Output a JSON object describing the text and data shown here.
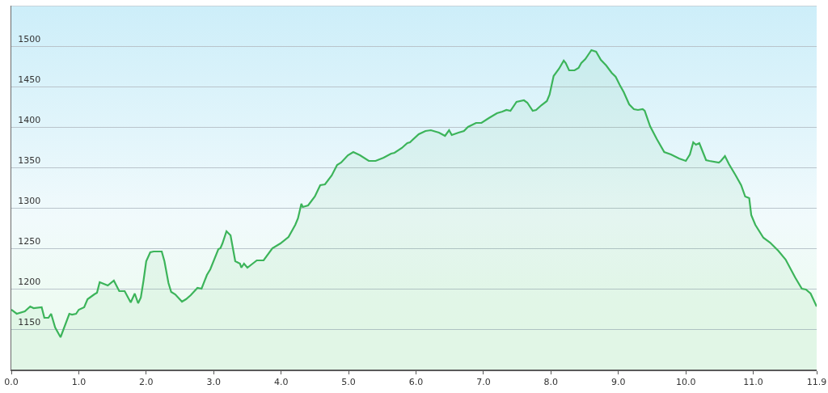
{
  "chart_data": {
    "type": "area",
    "color": "#3cb45a",
    "x": [
      0,
      0.08,
      0.2,
      0.28,
      0.33,
      0.45,
      0.49,
      0.55,
      0.59,
      0.65,
      0.73,
      0.86,
      0.9,
      0.96,
      1.0,
      1.08,
      1.13,
      1.23,
      1.27,
      1.31,
      1.43,
      1.52,
      1.6,
      1.68,
      1.77,
      1.83,
      1.88,
      1.92,
      1.96,
      2.0,
      2.06,
      2.11,
      2.23,
      2.27,
      2.33,
      2.37,
      2.43,
      2.53,
      2.59,
      2.66,
      2.76,
      2.82,
      2.9,
      2.95,
      3.07,
      3.1,
      3.13,
      3.19,
      3.25,
      3.32,
      3.39,
      3.41,
      3.45,
      3.5,
      3.64,
      3.74,
      3.87,
      3.99,
      4.11,
      4.21,
      4.25,
      4.3,
      4.32,
      4.4,
      4.5,
      4.58,
      4.65,
      4.75,
      4.83,
      4.89,
      4.99,
      5.07,
      5.17,
      5.3,
      5.4,
      5.52,
      5.63,
      5.68,
      5.79,
      5.87,
      5.91,
      6.04,
      6.14,
      6.22,
      6.34,
      6.43,
      6.49,
      6.53,
      6.63,
      6.71,
      6.77,
      6.89,
      6.97,
      7.08,
      7.2,
      7.28,
      7.34,
      7.4,
      7.49,
      7.6,
      7.65,
      7.73,
      7.78,
      7.86,
      7.94,
      7.98,
      8.04,
      8.12,
      8.19,
      8.22,
      8.27,
      8.35,
      8.41,
      8.45,
      8.51,
      8.6,
      8.67,
      8.74,
      8.82,
      8.9,
      8.96,
      9.02,
      9.08,
      9.16,
      9.23,
      9.29,
      9.36,
      9.39,
      9.47,
      9.57,
      9.68,
      9.78,
      9.9,
      10.0,
      10.06,
      10.11,
      10.15,
      10.2,
      10.3,
      10.35,
      10.49,
      10.52,
      10.58,
      10.64,
      10.74,
      10.82,
      10.88,
      10.94,
      10.97,
      11.03,
      11.15,
      11.25,
      11.37,
      11.48,
      11.62,
      11.72,
      11.78,
      11.85,
      11.94
    ],
    "values": [
      1174,
      1169,
      1172,
      1178,
      1176,
      1177,
      1164,
      1164,
      1169,
      1152,
      1140,
      1169,
      1168,
      1169,
      1174,
      1177,
      1187,
      1193,
      1195,
      1208,
      1204,
      1210,
      1197,
      1197,
      1183,
      1194,
      1182,
      1189,
      1210,
      1234,
      1245,
      1246,
      1246,
      1234,
      1207,
      1196,
      1193,
      1184,
      1187,
      1192,
      1201,
      1200,
      1217,
      1224,
      1249,
      1250,
      1256,
      1271,
      1266,
      1234,
      1231,
      1226,
      1231,
      1226,
      1235,
      1235,
      1250,
      1256,
      1264,
      1279,
      1287,
      1305,
      1301,
      1303,
      1314,
      1328,
      1329,
      1340,
      1353,
      1356,
      1365,
      1369,
      1365,
      1358,
      1358,
      1362,
      1367,
      1368,
      1374,
      1380,
      1381,
      1391,
      1395,
      1396,
      1393,
      1389,
      1396,
      1390,
      1393,
      1395,
      1400,
      1405,
      1405,
      1411,
      1417,
      1419,
      1421,
      1420,
      1431,
      1433,
      1430,
      1420,
      1421,
      1427,
      1432,
      1440,
      1463,
      1472,
      1482,
      1479,
      1470,
      1470,
      1473,
      1479,
      1484,
      1495,
      1493,
      1483,
      1476,
      1467,
      1462,
      1452,
      1443,
      1428,
      1422,
      1421,
      1422,
      1420,
      1401,
      1385,
      1369,
      1366,
      1361,
      1358,
      1366,
      1381,
      1378,
      1380,
      1359,
      1358,
      1356,
      1358,
      1364,
      1354,
      1340,
      1328,
      1314,
      1312,
      1291,
      1279,
      1263,
      1257,
      1247,
      1236,
      1214,
      1200,
      1199,
      1194,
      1178
    ],
    "xlim": [
      0,
      11.94
    ],
    "xticks": [
      {
        "value": 0,
        "label": "0.0"
      },
      {
        "value": 1,
        "label": "1.0"
      },
      {
        "value": 2,
        "label": "2.0"
      },
      {
        "value": 3,
        "label": "3.0"
      },
      {
        "value": 4,
        "label": "4.0"
      },
      {
        "value": 5,
        "label": "5.0"
      },
      {
        "value": 6,
        "label": "6.0"
      },
      {
        "value": 7,
        "label": "7.0"
      },
      {
        "value": 8,
        "label": "8.0"
      },
      {
        "value": 9,
        "label": "9.0"
      },
      {
        "value": 10,
        "label": "10.0"
      },
      {
        "value": 11,
        "label": "11.0"
      },
      {
        "value": 11.94,
        "label": "11.9"
      }
    ],
    "ylim": [
      1100,
      1550
    ],
    "yticks": [
      1150,
      1200,
      1250,
      1300,
      1350,
      1400,
      1450,
      1500
    ],
    "grid": "y"
  }
}
